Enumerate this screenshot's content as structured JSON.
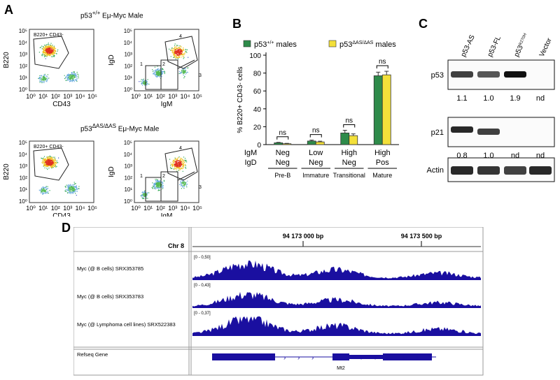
{
  "panelA": {
    "letter": "A",
    "row1": {
      "title_prefix": "p53",
      "title_sup": "+/+",
      "title_suffix": " Eμ-Myc Male",
      "gate_left": "B220+ CD43-",
      "quadrants": [
        "1",
        "2",
        "3",
        "4"
      ]
    },
    "row2": {
      "title_prefix": "p53",
      "title_sup": "ΔAS/ΔAS",
      "title_suffix": " Eμ-Myc Male",
      "gate_left": "B220+ CD43-",
      "quadrants": [
        "1",
        "2",
        "3",
        "4"
      ]
    },
    "left_ylabel": "B220",
    "left_xlabel": "CD43",
    "right_ylabel": "IgD",
    "right_xlabel": "IgM",
    "ticks": [
      "10⁰",
      "10¹",
      "10²",
      "10³",
      "10⁴",
      "10⁵"
    ]
  },
  "chart_data": {
    "type": "bar",
    "panel_letter": "B",
    "ylabel": "% B220+ CD43- cells",
    "ylim": [
      0,
      100
    ],
    "yticks": [
      "0",
      "20",
      "40",
      "60",
      "80",
      "100"
    ],
    "legend": [
      {
        "prefix": "p53",
        "sup": "+/+",
        "suffix": " males",
        "color": "#2e8b4a"
      },
      {
        "prefix": "p53",
        "sup": "ΔAS/ΔAS",
        "suffix": " males",
        "color": "#f3e03a"
      }
    ],
    "categories": [
      {
        "igm": "Neg",
        "igd": "Neg",
        "stage": "Pre-B"
      },
      {
        "igm": "Low",
        "igd": "Neg",
        "stage": "Immature"
      },
      {
        "igm": "High",
        "igd": "Neg",
        "stage": "Transitional"
      },
      {
        "igm": "High",
        "igd": "Pos",
        "stage": "Mature"
      }
    ],
    "row_labels": [
      "IgM",
      "IgD"
    ],
    "series": [
      {
        "name": "p53+/+ males",
        "values": [
          2,
          4,
          13,
          77
        ],
        "errors": [
          0.5,
          1,
          3,
          4
        ]
      },
      {
        "name": "p53ΔAS/ΔAS males",
        "values": [
          1,
          3,
          10,
          78
        ],
        "errors": [
          0.4,
          0.8,
          2,
          4
        ]
      }
    ],
    "significance": [
      "ns",
      "ns",
      "ns",
      "ns"
    ]
  },
  "panelC": {
    "letter": "C",
    "lanes": [
      {
        "prefix": "p53-AS",
        "sup": ""
      },
      {
        "prefix": "p53-FL",
        "sup": ""
      },
      {
        "prefix": "p53",
        "sup": "R270H"
      },
      {
        "prefix": "Vector",
        "sup": ""
      }
    ],
    "blots": [
      {
        "label": "p53",
        "quant": [
          "1.1",
          "1.0",
          "1.9",
          "nd"
        ]
      },
      {
        "label": "p21",
        "quant": [
          "0.8",
          "1.0",
          "nd",
          "nd"
        ]
      },
      {
        "label": "Actin",
        "quant": []
      }
    ]
  },
  "panelD": {
    "letter": "D",
    "chrom": "Chr 8",
    "positions": [
      "94 173 000 bp",
      "94 173 500 bp"
    ],
    "tracks": [
      {
        "name": "Myc (@ B cells) SRX353785",
        "range": "[0 - 0,50]"
      },
      {
        "name": "Myc (@ B cells) SRX353783",
        "range": "[0 - 0,43]"
      },
      {
        "name": "Myc (@ Lymphoma cell lines) SRX522383",
        "range": "[0 - 0,37]"
      }
    ],
    "gene_track": "Refseq Gene",
    "gene_name": "Mt2",
    "colors": {
      "signal": "#1a0fa0"
    }
  }
}
